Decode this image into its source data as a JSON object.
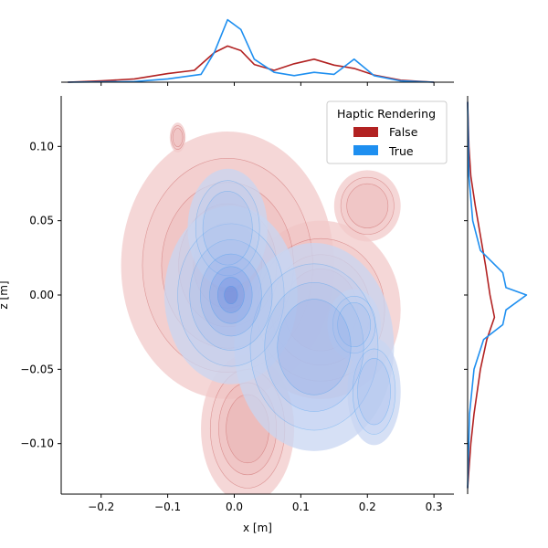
{
  "chart_data": {
    "type": "joint-kde",
    "xlabel": "x [m]",
    "ylabel": "z [m]",
    "xlim": [
      -0.26,
      0.33
    ],
    "ylim": [
      -0.134,
      0.134
    ],
    "xticks": [
      -0.2,
      -0.1,
      0.0,
      0.1,
      0.2,
      0.3
    ],
    "xtick_labels": [
      "−0.2",
      "−0.1",
      "0.0",
      "0.1",
      "0.2",
      "0.3"
    ],
    "yticks": [
      0.1,
      0.05,
      0.0,
      -0.05,
      -0.1
    ],
    "ytick_labels": [
      "0.10",
      "0.05",
      "0.00",
      "−0.05",
      "−0.10"
    ],
    "legend": {
      "title": "Haptic Rendering",
      "placement": "top-right",
      "entries": [
        {
          "label": "False",
          "color": "#b22222"
        },
        {
          "label": "True",
          "color": "#1e8ff0"
        }
      ]
    },
    "series": [
      {
        "name": "False",
        "color": "#b22222",
        "blobs": [
          {
            "cx": -0.01,
            "cz": 0.02,
            "sx": 0.08,
            "sz": 0.045,
            "w": 1.0
          },
          {
            "cx": 0.02,
            "cz": -0.09,
            "sx": 0.035,
            "sz": 0.025,
            "w": 0.6
          },
          {
            "cx": 0.13,
            "cz": -0.01,
            "sx": 0.06,
            "sz": 0.03,
            "w": 0.6
          },
          {
            "cx": 0.2,
            "cz": 0.06,
            "sx": 0.025,
            "sz": 0.012,
            "w": 0.35
          },
          {
            "cx": -0.085,
            "cz": 0.106,
            "sx": 0.006,
            "sz": 0.005,
            "w": 0.2
          }
        ],
        "x_marginal": {
          "x": [
            -0.25,
            -0.2,
            -0.15,
            -0.1,
            -0.06,
            -0.03,
            -0.01,
            0.01,
            0.03,
            0.06,
            0.09,
            0.12,
            0.15,
            0.18,
            0.21,
            0.25,
            0.3
          ],
          "density": [
            0.0,
            0.02,
            0.05,
            0.13,
            0.18,
            0.45,
            0.55,
            0.48,
            0.27,
            0.18,
            0.28,
            0.35,
            0.26,
            0.21,
            0.11,
            0.03,
            0.0
          ]
        },
        "z_marginal": {
          "z": [
            0.13,
            0.1,
            0.08,
            0.06,
            0.04,
            0.02,
            0.0,
            -0.015,
            -0.03,
            -0.05,
            -0.08,
            -0.1,
            -0.13
          ],
          "density": [
            0.0,
            0.02,
            0.05,
            0.12,
            0.2,
            0.28,
            0.35,
            0.42,
            0.3,
            0.2,
            0.1,
            0.05,
            0.0
          ]
        }
      },
      {
        "name": "True",
        "color": "#1e8ff0",
        "blobs": [
          {
            "cx": -0.005,
            "cz": 0.0,
            "sx": 0.05,
            "sz": 0.03,
            "w": 1.0
          },
          {
            "cx": 0.12,
            "cz": -0.035,
            "sx": 0.06,
            "sz": 0.035,
            "w": 0.7
          },
          {
            "cx": 0.18,
            "cz": -0.02,
            "sx": 0.02,
            "sz": 0.012,
            "w": 0.5
          },
          {
            "cx": -0.01,
            "cz": 0.045,
            "sx": 0.03,
            "sz": 0.02,
            "w": 0.45
          },
          {
            "cx": 0.21,
            "cz": -0.065,
            "sx": 0.02,
            "sz": 0.018,
            "w": 0.3
          }
        ],
        "x_marginal": {
          "x": [
            -0.25,
            -0.15,
            -0.1,
            -0.05,
            -0.03,
            -0.01,
            0.01,
            0.03,
            0.06,
            0.09,
            0.12,
            0.15,
            0.18,
            0.21,
            0.25,
            0.3
          ],
          "density": [
            0.0,
            0.01,
            0.05,
            0.12,
            0.45,
            0.95,
            0.8,
            0.35,
            0.15,
            0.1,
            0.15,
            0.12,
            0.35,
            0.1,
            0.02,
            0.0
          ]
        },
        "z_marginal": {
          "z": [
            0.13,
            0.08,
            0.05,
            0.03,
            0.015,
            0.005,
            0.0,
            -0.01,
            -0.02,
            -0.03,
            -0.05,
            -0.08,
            -0.13
          ],
          "density": [
            0.0,
            0.02,
            0.08,
            0.2,
            0.55,
            0.6,
            0.92,
            0.6,
            0.55,
            0.25,
            0.1,
            0.03,
            0.0
          ]
        }
      }
    ]
  }
}
